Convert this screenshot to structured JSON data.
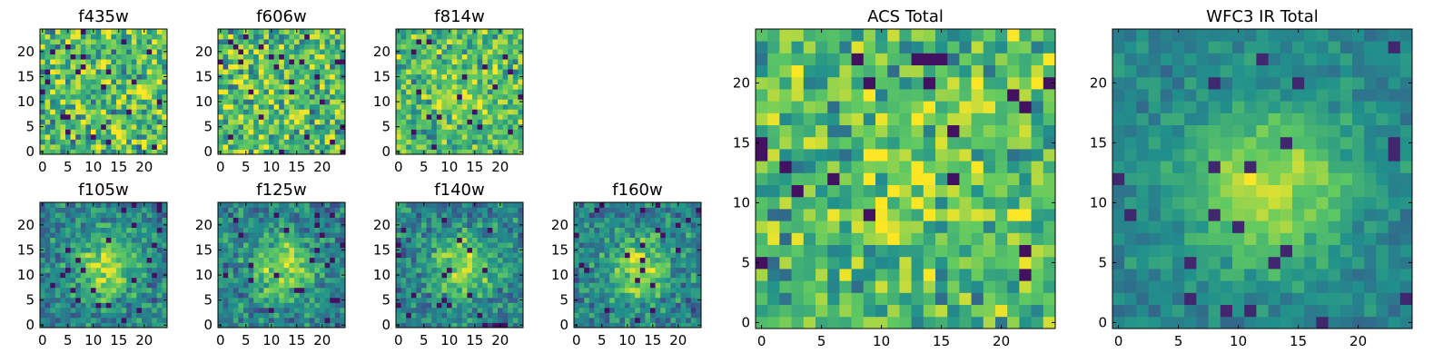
{
  "colormap": [
    "#440154",
    "#3b528b",
    "#21918c",
    "#5ec962",
    "#fde725"
  ],
  "chart_data": [
    {
      "type": "heatmap",
      "title": "f435w",
      "pattern": "noise",
      "xlim": [
        0,
        24
      ],
      "ylim": [
        0,
        24
      ],
      "xticks": [
        "0",
        "5",
        "10",
        "15",
        "20"
      ],
      "yticks": [
        "0",
        "5",
        "10",
        "15",
        "20"
      ]
    },
    {
      "type": "heatmap",
      "title": "f606w",
      "pattern": "noise",
      "xlim": [
        0,
        24
      ],
      "ylim": [
        0,
        24
      ],
      "xticks": [
        "0",
        "5",
        "10",
        "15",
        "20"
      ],
      "yticks": [
        "0",
        "5",
        "10",
        "15",
        "20"
      ]
    },
    {
      "type": "heatmap",
      "title": "f814w",
      "pattern": "noise_faint_center",
      "xlim": [
        0,
        24
      ],
      "ylim": [
        0,
        24
      ],
      "xticks": [
        "0",
        "5",
        "10",
        "15",
        "20"
      ],
      "yticks": [
        "0",
        "5",
        "10",
        "15",
        "20"
      ]
    },
    {
      "type": "heatmap",
      "title": "f105w",
      "pattern": "central_source",
      "xlim": [
        0,
        24
      ],
      "ylim": [
        0,
        24
      ],
      "xticks": [
        "0",
        "5",
        "10",
        "15",
        "20"
      ],
      "yticks": [
        "0",
        "5",
        "10",
        "15",
        "20"
      ]
    },
    {
      "type": "heatmap",
      "title": "f125w",
      "pattern": "central_source",
      "xlim": [
        0,
        24
      ],
      "ylim": [
        0,
        24
      ],
      "xticks": [
        "0",
        "5",
        "10",
        "15",
        "20"
      ],
      "yticks": [
        "0",
        "5",
        "10",
        "15",
        "20"
      ]
    },
    {
      "type": "heatmap",
      "title": "f140w",
      "pattern": "central_source",
      "xlim": [
        0,
        24
      ],
      "ylim": [
        0,
        24
      ],
      "xticks": [
        "0",
        "5",
        "10",
        "15",
        "20"
      ],
      "yticks": [
        "0",
        "5",
        "10",
        "15",
        "20"
      ]
    },
    {
      "type": "heatmap",
      "title": "f160w",
      "pattern": "central_source",
      "xlim": [
        0,
        24
      ],
      "ylim": [
        0,
        24
      ],
      "xticks": [
        "0",
        "5",
        "10",
        "15",
        "20"
      ],
      "yticks": [
        "0",
        "5",
        "10",
        "15",
        "20"
      ]
    },
    {
      "type": "heatmap",
      "title": "ACS Total",
      "pattern": "noise_faint_center",
      "xlim": [
        0,
        24
      ],
      "ylim": [
        0,
        24
      ],
      "xticks": [
        "0",
        "5",
        "10",
        "15",
        "20"
      ],
      "yticks": [
        "0",
        "5",
        "10",
        "15",
        "20"
      ]
    },
    {
      "type": "heatmap",
      "title": "WFC3 IR Total",
      "pattern": "central_source_smooth",
      "xlim": [
        0,
        24
      ],
      "ylim": [
        0,
        24
      ],
      "xticks": [
        "0",
        "5",
        "10",
        "15",
        "20"
      ],
      "yticks": [
        "0",
        "5",
        "10",
        "15",
        "20"
      ]
    }
  ]
}
